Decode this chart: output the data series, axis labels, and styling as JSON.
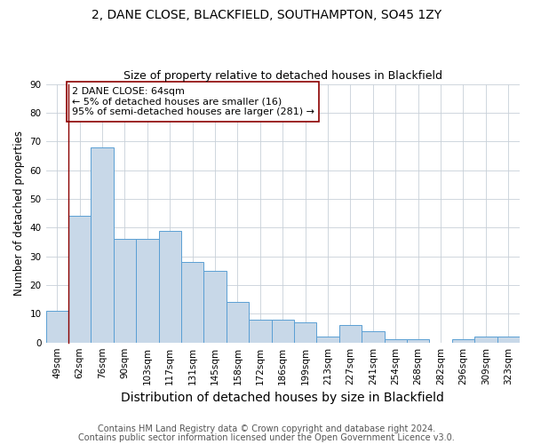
{
  "title": "2, DANE CLOSE, BLACKFIELD, SOUTHAMPTON, SO45 1ZY",
  "subtitle": "Size of property relative to detached houses in Blackfield",
  "xlabel": "Distribution of detached houses by size in Blackfield",
  "ylabel": "Number of detached properties",
  "categories": [
    "49sqm",
    "62sqm",
    "76sqm",
    "90sqm",
    "103sqm",
    "117sqm",
    "131sqm",
    "145sqm",
    "158sqm",
    "172sqm",
    "186sqm",
    "199sqm",
    "213sqm",
    "227sqm",
    "241sqm",
    "254sqm",
    "268sqm",
    "282sqm",
    "296sqm",
    "309sqm",
    "323sqm"
  ],
  "values": [
    11,
    44,
    68,
    36,
    36,
    39,
    28,
    25,
    14,
    8,
    8,
    7,
    2,
    6,
    4,
    1,
    1,
    0,
    1,
    2,
    2
  ],
  "bar_color": "#c8d8e8",
  "bar_edge_color": "#5a9fd4",
  "annotation_title": "2 DANE CLOSE: 64sqm",
  "annotation_line1": "← 5% of detached houses are smaller (16)",
  "annotation_line2": "95% of semi-detached houses are larger (281) →",
  "vline_index": 1,
  "ylim": [
    0,
    90
  ],
  "yticks": [
    0,
    10,
    20,
    30,
    40,
    50,
    60,
    70,
    80,
    90
  ],
  "footnote1": "Contains HM Land Registry data © Crown copyright and database right 2024.",
  "footnote2": "Contains public sector information licensed under the Open Government Licence v3.0.",
  "bg_color": "#ffffff",
  "grid_color": "#c8d0d8",
  "title_fontsize": 10,
  "subtitle_fontsize": 9,
  "xlabel_fontsize": 10,
  "ylabel_fontsize": 8.5,
  "tick_fontsize": 7.5,
  "annotation_fontsize": 8,
  "footnote_fontsize": 7
}
